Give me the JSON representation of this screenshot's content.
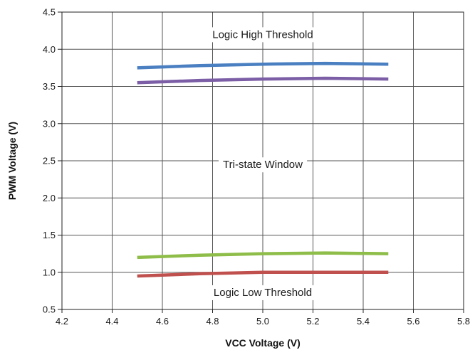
{
  "chart_data": {
    "type": "line",
    "xlabel": "VCC Voltage (V)",
    "ylabel": "PWM Voltage (V)",
    "xlim": [
      4.2,
      5.8
    ],
    "ylim": [
      0.5,
      4.5
    ],
    "xticks": [
      "4.2",
      "4.4",
      "4.6",
      "4.8",
      "5.0",
      "5.2",
      "5.4",
      "5.6",
      "5.8"
    ],
    "yticks": [
      "0.5",
      "1.0",
      "1.5",
      "2.0",
      "2.5",
      "3.0",
      "3.5",
      "4.0",
      "4.5"
    ],
    "grid": true,
    "series": [
      {
        "color": "#4a7fc1",
        "x": [
          4.5,
          4.75,
          5.0,
          5.25,
          5.5
        ],
        "y": [
          3.75,
          3.78,
          3.8,
          3.81,
          3.8
        ]
      },
      {
        "color": "#7b5ea6",
        "x": [
          4.5,
          4.75,
          5.0,
          5.25,
          5.5
        ],
        "y": [
          3.55,
          3.58,
          3.6,
          3.61,
          3.6
        ]
      },
      {
        "color": "#8fbd4a",
        "x": [
          4.5,
          4.75,
          5.0,
          5.25,
          5.5
        ],
        "y": [
          1.2,
          1.23,
          1.25,
          1.26,
          1.25
        ]
      },
      {
        "color": "#c0504d",
        "x": [
          4.5,
          4.75,
          5.0,
          5.25,
          5.5
        ],
        "y": [
          0.95,
          0.98,
          1.0,
          1.0,
          1.0
        ]
      }
    ],
    "annotations": [
      {
        "text": "Logic High Threshold",
        "x": 5.0,
        "y": 4.2
      },
      {
        "text": "Tri-state Window",
        "x": 5.0,
        "y": 2.45
      },
      {
        "text": "Logic Low Threshold",
        "x": 5.0,
        "y": 0.73
      }
    ]
  }
}
